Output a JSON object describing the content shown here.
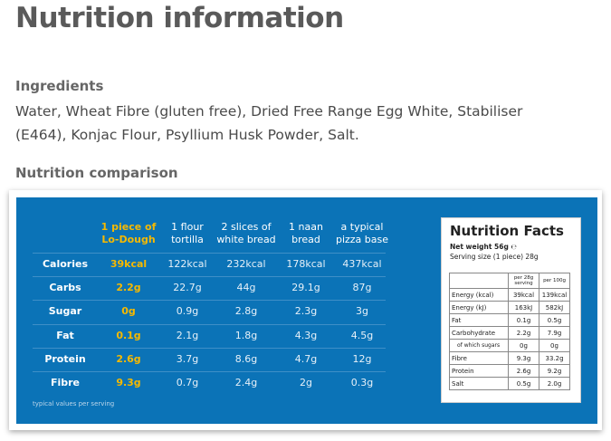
{
  "title": "Nutrition information",
  "ingredients": {
    "heading": "Ingredients",
    "text": "Water, Wheat Fibre (gluten free), Dried Free Range Egg White, Stabiliser (E464), Konjac Flour, Psyllium Husk Powder, Salt."
  },
  "comparison": {
    "heading": "Nutrition comparison",
    "columns": [
      [
        "1 piece of",
        "Lo-Dough"
      ],
      [
        "1 flour",
        "tortilla"
      ],
      [
        "2 slices of",
        "white bread"
      ],
      [
        "1 naan",
        "bread"
      ],
      [
        "a typical",
        "pizza base"
      ]
    ],
    "rows": [
      {
        "label": "Calories",
        "values": [
          "39kcal",
          "122kcal",
          "232kcal",
          "178kcal",
          "437kcal"
        ]
      },
      {
        "label": "Carbs",
        "values": [
          "2.2g",
          "22.7g",
          "44g",
          "29.1g",
          "87g"
        ]
      },
      {
        "label": "Sugar",
        "values": [
          "0g",
          "0.9g",
          "2.8g",
          "2.3g",
          "3g"
        ]
      },
      {
        "label": "Fat",
        "values": [
          "0.1g",
          "2.1g",
          "1.8g",
          "4.3g",
          "4.5g"
        ]
      },
      {
        "label": "Protein",
        "values": [
          "2.6g",
          "3.7g",
          "8.6g",
          "4.7g",
          "12g"
        ]
      },
      {
        "label": "Fibre",
        "values": [
          "9.3g",
          "0.7g",
          "2.4g",
          "2g",
          "0.3g"
        ]
      }
    ],
    "footnote": "typical values per serving"
  },
  "facts": {
    "title": "Nutrition Facts",
    "net_weight": "Net weight 56g ℮",
    "serving_size": "Serving size (1 piece) 28g",
    "columns": [
      "per 28g serving",
      "per 100g"
    ],
    "rows": [
      [
        "Energy (kcal)",
        "39kcal",
        "139kcal"
      ],
      [
        "Energy (kJ)",
        "163kJ",
        "582kJ"
      ],
      [
        "Fat",
        "0.1g",
        "0.5g"
      ],
      [
        "Carbohydrate",
        "2.2g",
        "7.9g"
      ],
      [
        "of which sugars",
        "0g",
        "0g"
      ],
      [
        "Fibre",
        "9.3g",
        "33.2g"
      ],
      [
        "Protein",
        "2.6g",
        "9.2g"
      ],
      [
        "Salt",
        "0.5g",
        "2.0g"
      ]
    ]
  }
}
